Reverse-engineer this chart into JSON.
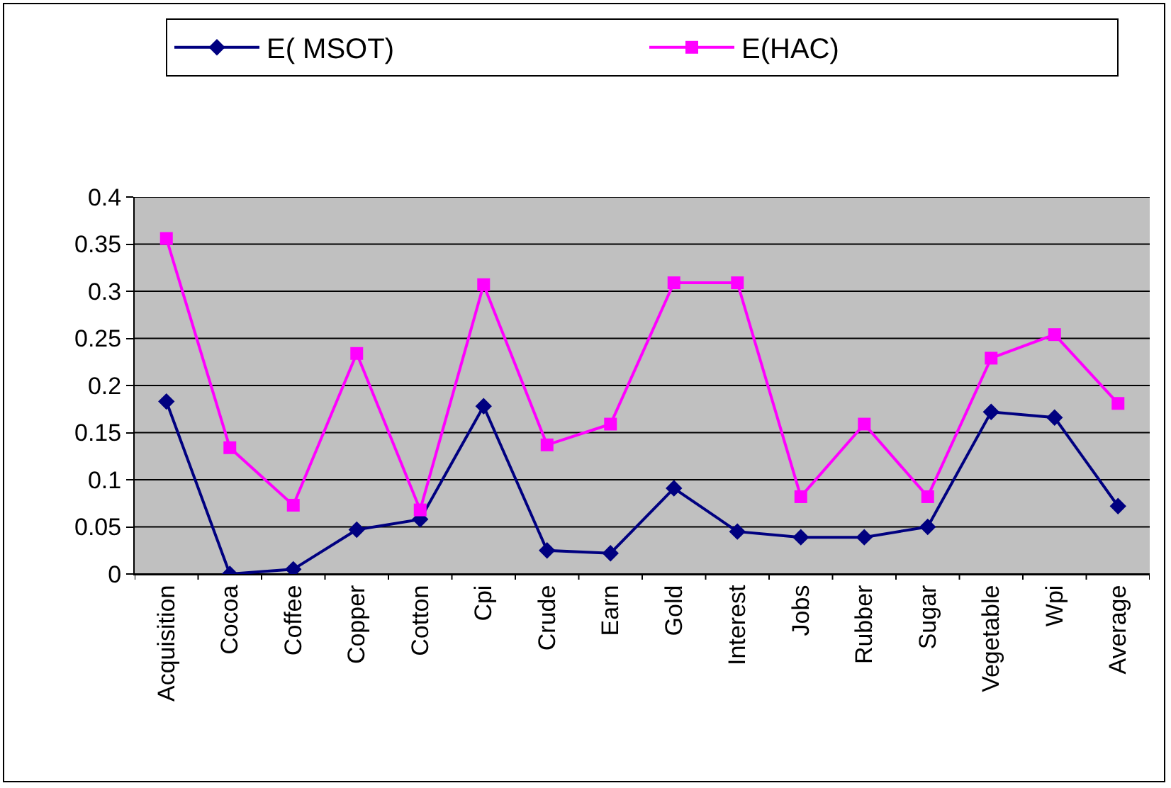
{
  "chart_data": {
    "type": "line",
    "categories": [
      "Acquisition",
      "Cocoa",
      "Coffee",
      "Copper",
      "Cotton",
      "Cpi",
      "Crude",
      "Earn",
      "Gold",
      "Interest",
      "Jobs",
      "Rubber",
      "Sugar",
      "Vegetable",
      "Wpi",
      "Average"
    ],
    "series": [
      {
        "name": "E( MSOT)",
        "color": "#000080",
        "marker": "diamond",
        "values": [
          0.183,
          0,
          0.005,
          0.047,
          0.058,
          0.178,
          0.025,
          0.022,
          0.091,
          0.045,
          0.039,
          0.039,
          0.05,
          0.172,
          0.166,
          0.072
        ]
      },
      {
        "name": "E(HAC)",
        "color": "#ff00ff",
        "marker": "square",
        "values": [
          0.356,
          0.134,
          0.073,
          0.234,
          0.068,
          0.307,
          0.137,
          0.159,
          0.309,
          0.309,
          0.082,
          0.159,
          0.082,
          0.229,
          0.254,
          0.181
        ]
      }
    ],
    "ylim": [
      0,
      0.4
    ],
    "yticks": [
      0,
      0.05,
      0.1,
      0.15,
      0.2,
      0.25,
      0.3,
      0.35,
      0.4
    ],
    "grid": "y",
    "legend": "top",
    "line_style": "solid"
  }
}
